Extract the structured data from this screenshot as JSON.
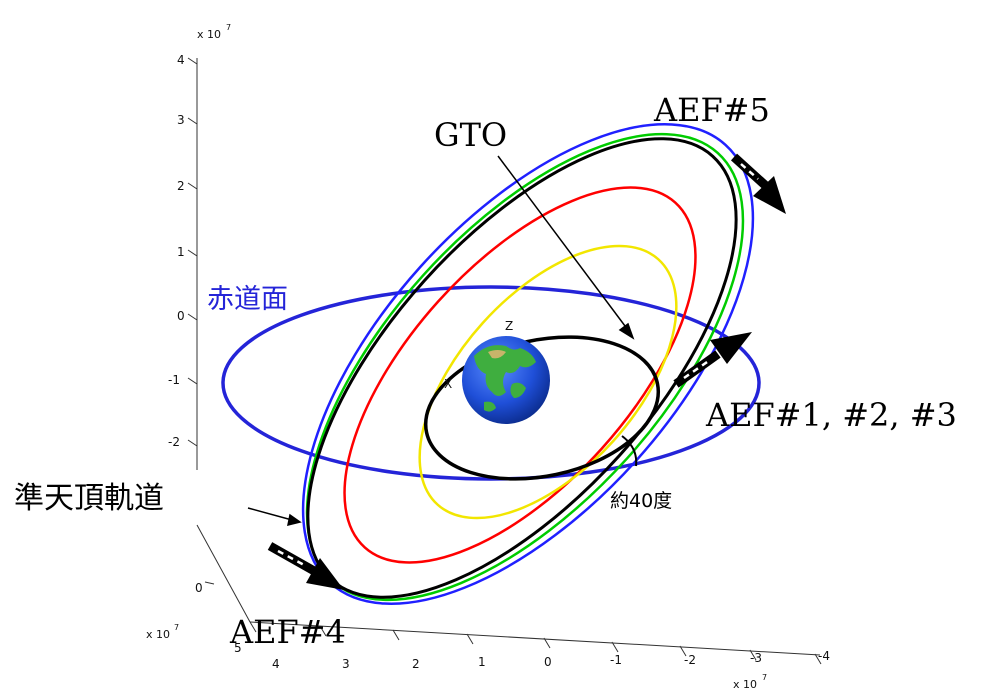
{
  "axes": {
    "z_ticks": [
      "4",
      "3",
      "2",
      "1",
      "0",
      "-1",
      "-2"
    ],
    "z_exponent": "x 10",
    "z_exponent_power": "7",
    "x_ticks": [
      "5",
      "4",
      "3",
      "2",
      "1",
      "0",
      "-1",
      "-2",
      "-3",
      "-4"
    ],
    "x_exponent": "x 10",
    "x_exponent_power": "7",
    "left_partial_ticks": [
      "0"
    ],
    "left_exponent": "x 10",
    "left_exponent_power": "7"
  },
  "globe_axes": {
    "z": "Z",
    "x": "X"
  },
  "labels": {
    "aef5": "AEF#5",
    "gto": "GTO",
    "equatorial_plane": "赤道面",
    "aef123": "AEF#1, #2, #3",
    "qzs_orbit": "準天頂軌道",
    "inclination": "約40度",
    "aef4": "AEF#4"
  },
  "colors": {
    "equatorial_plane": "#2424d8",
    "gto": "#000000",
    "orbit_yellow": "#ffff00",
    "orbit_red": "#ff0000",
    "orbit_green": "#00cc00",
    "orbit_black": "#000000",
    "orbit_blue": "#2020ff",
    "earth_ocean": "#1f4fd8",
    "earth_land": "#3fae3f"
  }
}
